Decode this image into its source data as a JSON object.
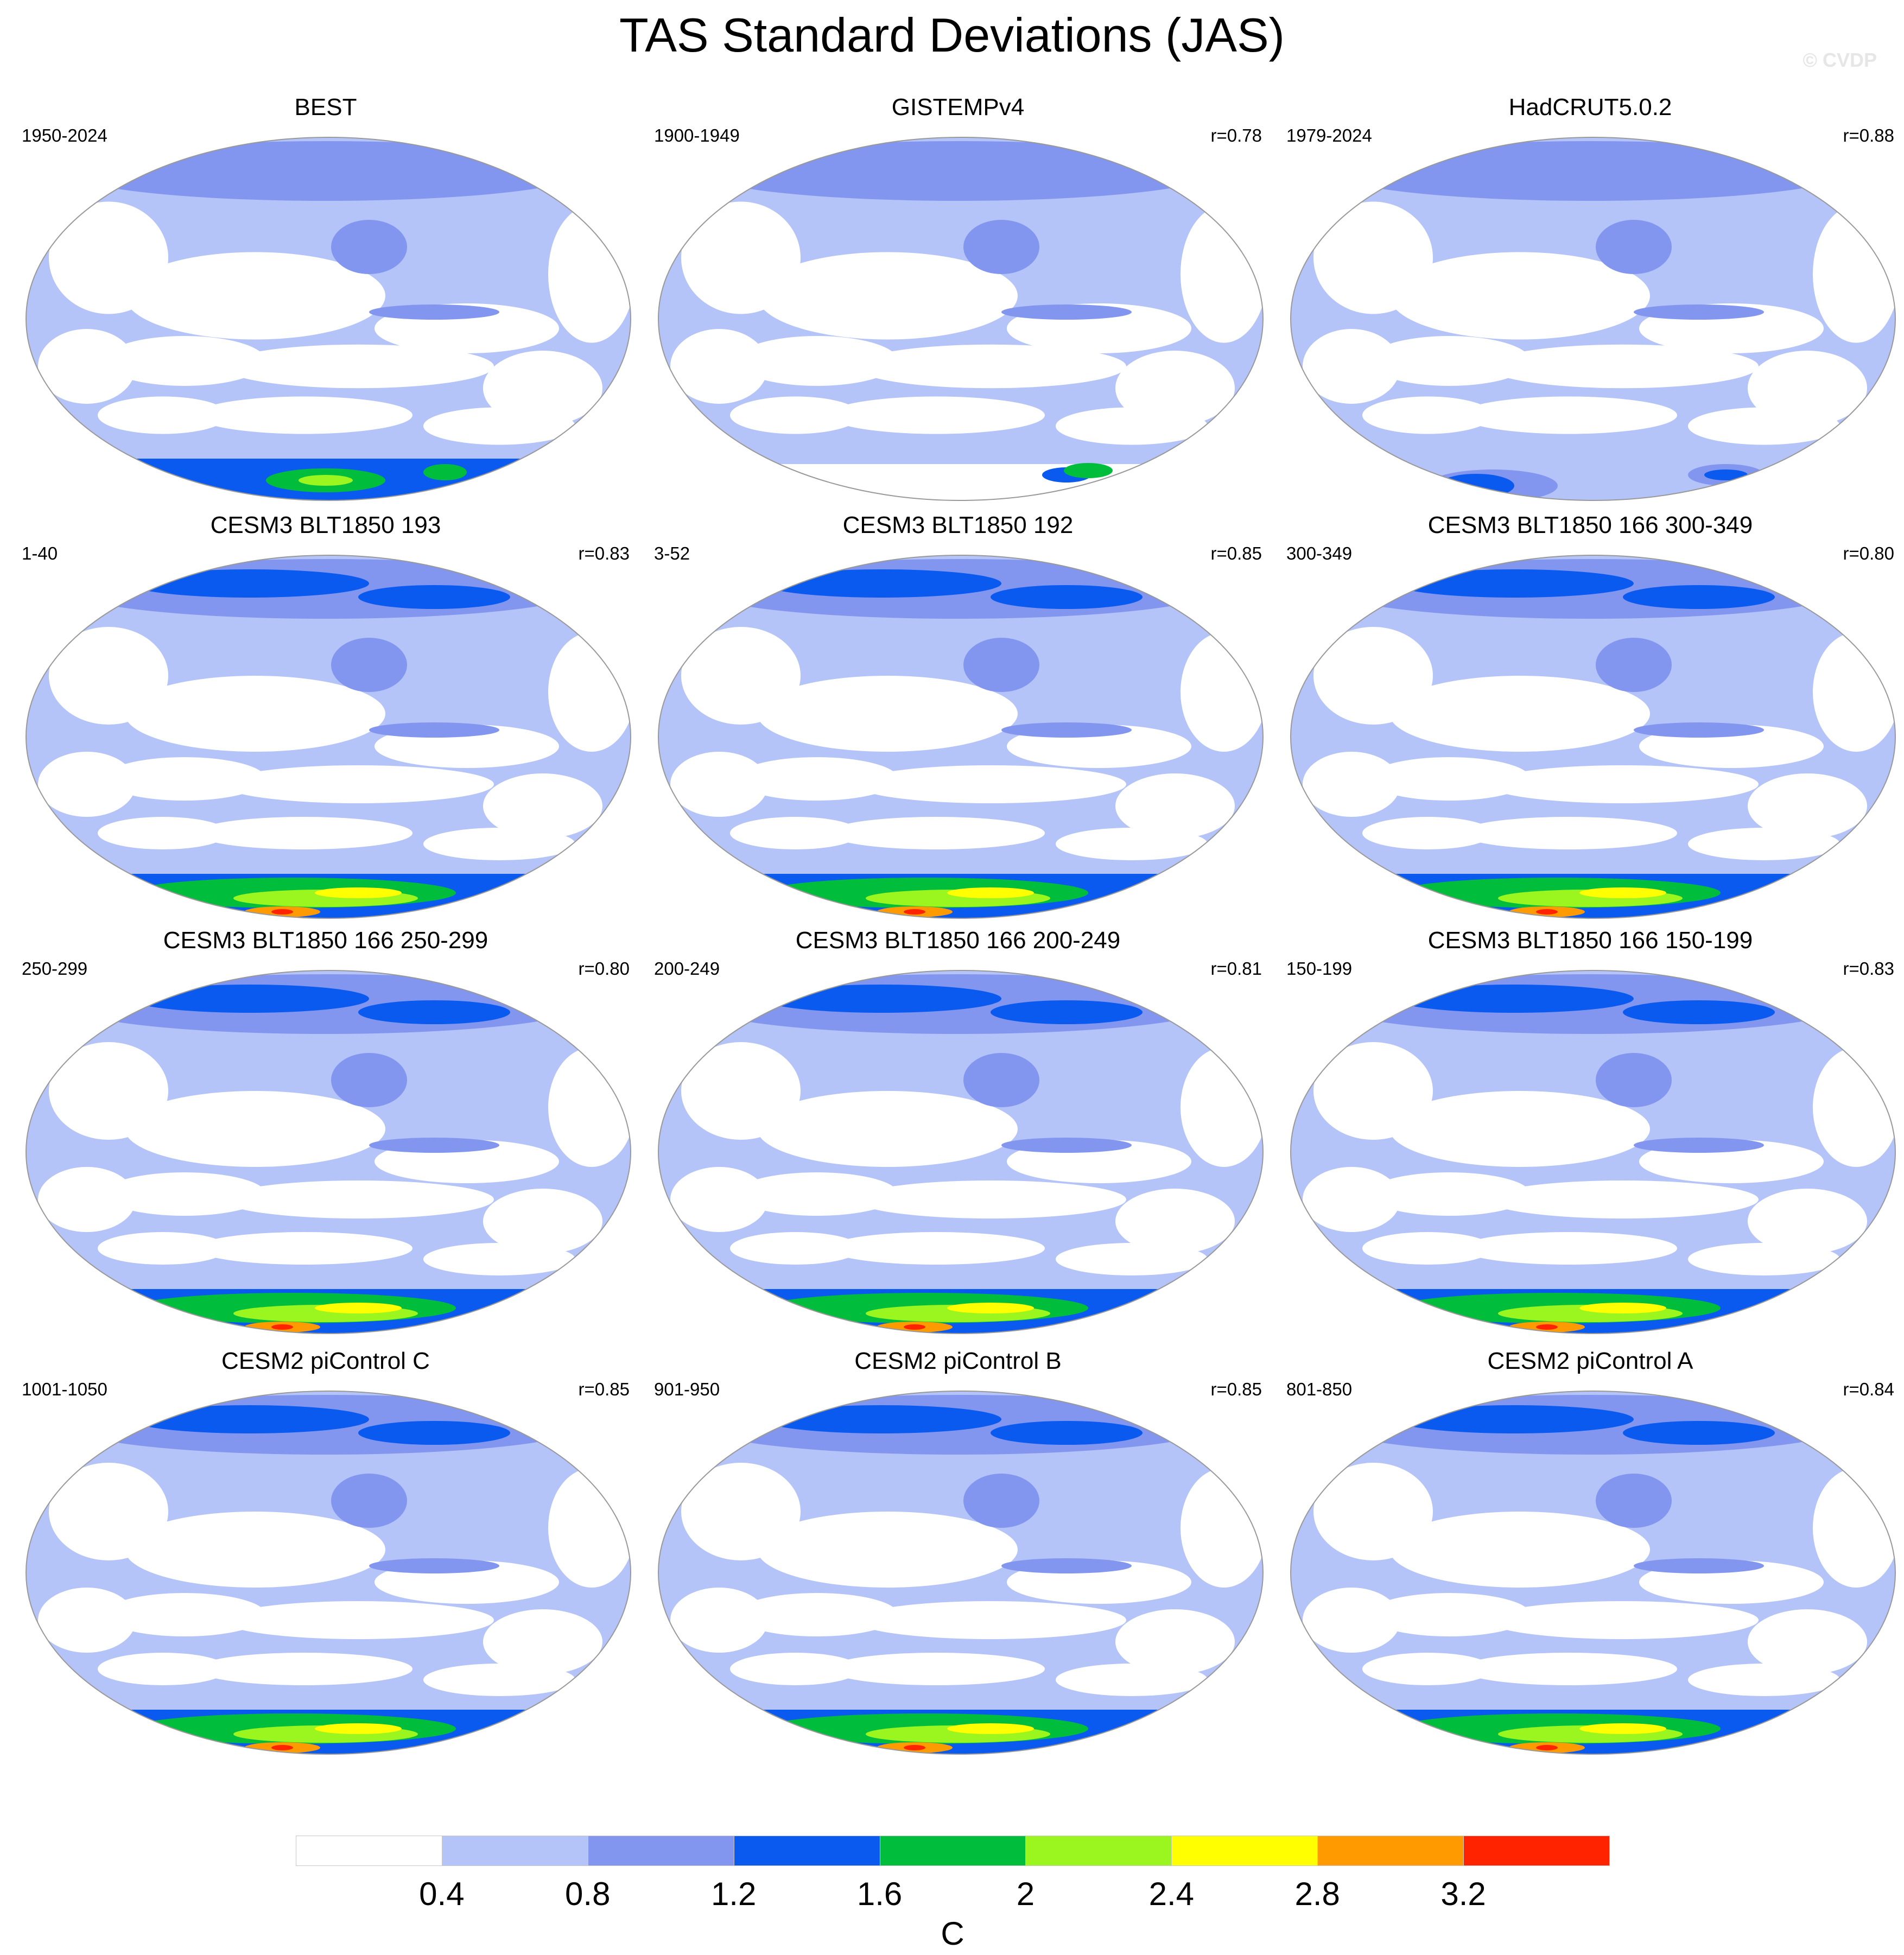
{
  "title": "TAS Standard Deviations (JAS)",
  "watermark": "© CVDP",
  "panels": [
    {
      "title": "BEST",
      "period": "1950-2024",
      "corr": "",
      "antarctic": "obs_best"
    },
    {
      "title": "GISTEMPv4",
      "period": "1900-1949",
      "corr": "r=0.78",
      "antarctic": "obs_gistemp"
    },
    {
      "title": "HadCRUT5.0.2",
      "period": "1979-2024",
      "corr": "r=0.88",
      "antarctic": "obs_hadcrut"
    },
    {
      "title": "CESM3 BLT1850 193",
      "period": "1-40",
      "corr": "r=0.83",
      "antarctic": "model"
    },
    {
      "title": "CESM3 BLT1850 192",
      "period": "3-52",
      "corr": "r=0.85",
      "antarctic": "model"
    },
    {
      "title": "CESM3 BLT1850 166 300-349",
      "period": "300-349",
      "corr": "r=0.80",
      "antarctic": "model"
    },
    {
      "title": "CESM3 BLT1850 166 250-299",
      "period": "250-299",
      "corr": "r=0.80",
      "antarctic": "model"
    },
    {
      "title": "CESM3 BLT1850 166 200-249",
      "period": "200-249",
      "corr": "r=0.81",
      "antarctic": "model"
    },
    {
      "title": "CESM3 BLT1850 166 150-199",
      "period": "150-199",
      "corr": "r=0.83",
      "antarctic": "model"
    },
    {
      "title": "CESM2 piControl C",
      "period": "1001-1050",
      "corr": "r=0.85",
      "antarctic": "model"
    },
    {
      "title": "CESM2 piControl B",
      "period": "901-950",
      "corr": "r=0.85",
      "antarctic": "model"
    },
    {
      "title": "CESM2 piControl A",
      "period": "801-850",
      "corr": "r=0.84",
      "antarctic": "model"
    }
  ],
  "colorbar": {
    "labels": [
      "0.4",
      "0.8",
      "1.2",
      "1.6",
      "2",
      "2.4",
      "2.8",
      "3.2"
    ],
    "colors": [
      "#ffffff",
      "#b4c3f8",
      "#8296f0",
      "#0a5af0",
      "#00be3c",
      "#9bf51e",
      "#ffff00",
      "#ff9b00",
      "#ff2300"
    ],
    "units": "C"
  }
}
